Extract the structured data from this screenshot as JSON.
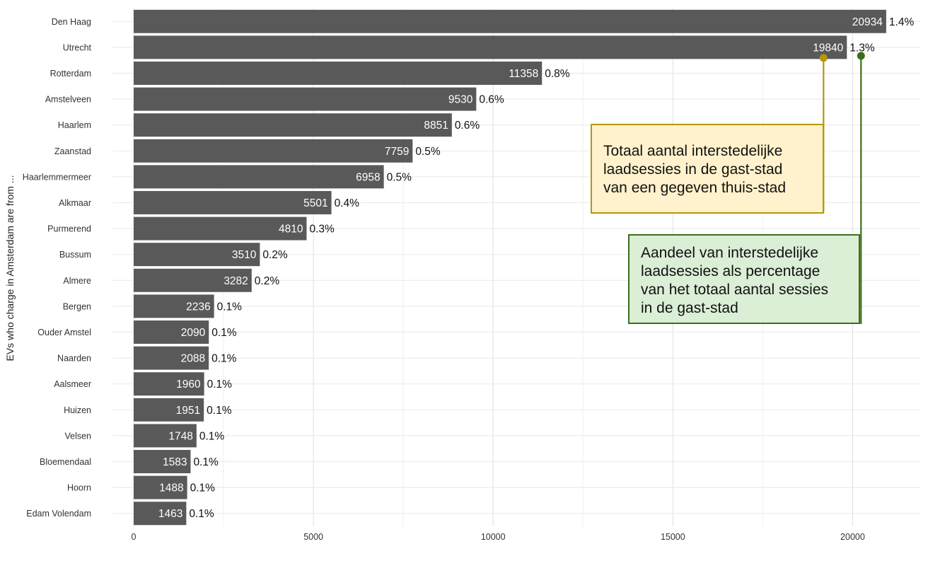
{
  "chart_data": {
    "type": "bar",
    "orientation": "horizontal",
    "ylabel": "EVs who charge in Amsterdam are from ...",
    "xlabel": "",
    "xlim": [
      0,
      21900
    ],
    "x_ticks": [
      0,
      5000,
      10000,
      15000,
      20000
    ],
    "grid": true,
    "bar_color": "#595959",
    "categories": [
      "Den Haag",
      "Utrecht",
      "Rotterdam",
      "Amstelveen",
      "Haarlem",
      "Zaanstad",
      "Haarlemmermeer",
      "Alkmaar",
      "Purmerend",
      "Bussum",
      "Almere",
      "Bergen",
      "Ouder Amstel",
      "Naarden",
      "Aalsmeer",
      "Huizen",
      "Velsen",
      "Bloemendaal",
      "Hoorn",
      "Edam Volendam"
    ],
    "values": [
      20934,
      19840,
      11358,
      9530,
      8851,
      7759,
      6958,
      5501,
      4810,
      3510,
      3282,
      2236,
      2090,
      2088,
      1960,
      1951,
      1748,
      1583,
      1488,
      1463
    ],
    "percent_labels": [
      "1.4%",
      "1.3%",
      "0.8%",
      "0.6%",
      "0.6%",
      "0.5%",
      "0.5%",
      "0.4%",
      "0.3%",
      "0.2%",
      "0.2%",
      "0.1%",
      "0.1%",
      "0.1%",
      "0.1%",
      "0.1%",
      "0.1%",
      "0.1%",
      "0.1%",
      "0.1%"
    ]
  },
  "annotations": [
    {
      "lines": [
        "Totaal aantal interstedelijke",
        "laadsessies in de gast-stad",
        "van een gegeven thuis-stad"
      ],
      "points_to": "value label 19840 (Utrecht)",
      "color": "#b8960c",
      "fill": "#fff2cc"
    },
    {
      "lines": [
        "Aandeel van interstedelijke",
        "laadsessies als percentage",
        "van het totaal aantal sessies",
        "in de gast-stad"
      ],
      "points_to": "percentage label 1.3% (Utrecht)",
      "color": "#3c6e1a",
      "fill": "#dbeed6"
    }
  ]
}
